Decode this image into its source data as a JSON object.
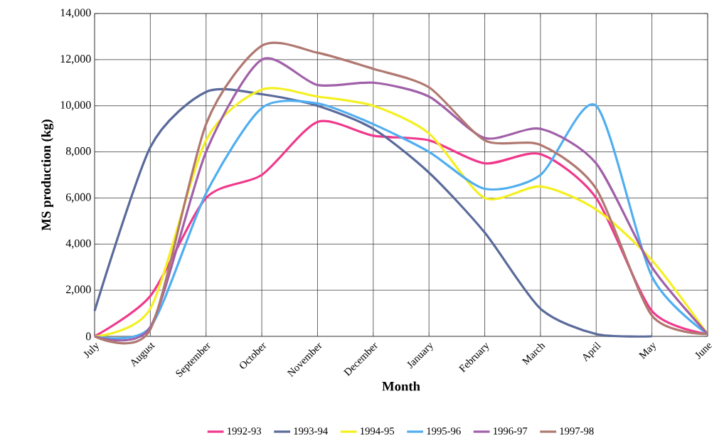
{
  "chart_data": {
    "type": "line",
    "xlabel": "Month",
    "ylabel": "MS production (kg)",
    "categories": [
      "July",
      "August",
      "September",
      "October",
      "November",
      "December",
      "January",
      "February",
      "March",
      "April",
      "May",
      "June"
    ],
    "series": [
      {
        "name": "1992-93",
        "color": "#f0388c",
        "values": [
          0,
          1750,
          6000,
          7000,
          9300,
          8700,
          8500,
          7500,
          7900,
          6000,
          1100,
          100
        ]
      },
      {
        "name": "1993-94",
        "color": "#5a6a9a",
        "values": [
          1100,
          8200,
          10600,
          10500,
          10000,
          9000,
          7100,
          4500,
          1200,
          100,
          0,
          null
        ]
      },
      {
        "name": "1994-95",
        "color": "#f4f020",
        "values": [
          0,
          1200,
          8500,
          10700,
          10400,
          10000,
          8800,
          6000,
          6500,
          5500,
          3300,
          100
        ]
      },
      {
        "name": "1995-96",
        "color": "#50aef0",
        "values": [
          0,
          400,
          6200,
          9900,
          10100,
          9200,
          8000,
          6400,
          7000,
          10000,
          2600,
          100
        ]
      },
      {
        "name": "1996-97",
        "color": "#a060a8",
        "values": [
          0,
          400,
          8000,
          12000,
          10900,
          11000,
          10400,
          8600,
          9000,
          7500,
          3000,
          100
        ]
      },
      {
        "name": "1997-98",
        "color": "#b07870",
        "values": [
          0,
          300,
          9200,
          12600,
          12300,
          11600,
          10800,
          8500,
          8300,
          6400,
          900,
          100
        ]
      }
    ],
    "ylim": [
      0,
      14000
    ],
    "yticks": [
      {
        "value": 0,
        "label": "0"
      },
      {
        "value": 2000,
        "label": "2,000"
      },
      {
        "value": 4000,
        "label": "4,000"
      },
      {
        "value": 6000,
        "label": "6,000"
      },
      {
        "value": 8000,
        "label": "8,000"
      },
      {
        "value": 10000,
        "label": "10,000"
      },
      {
        "value": 12000,
        "label": "12,000"
      },
      {
        "value": 14000,
        "label": "14,000"
      }
    ],
    "grid": true,
    "legend": "bottom"
  }
}
